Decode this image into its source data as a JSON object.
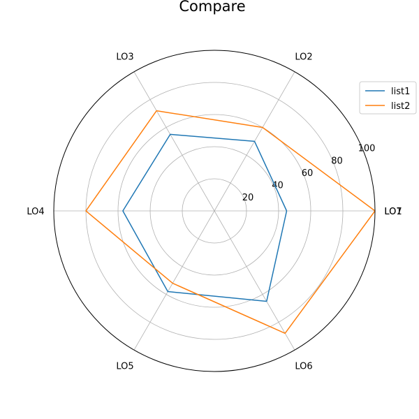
{
  "chart_data": {
    "type": "radar",
    "title": "Compare",
    "categories": [
      "LO1",
      "LO2",
      "LO3",
      "LO4",
      "LO5",
      "LO6",
      "LO7"
    ],
    "series": [
      {
        "name": "list1",
        "color": "#1f77b4",
        "values": [
          45,
          50,
          55,
          57,
          58,
          65,
          45
        ]
      },
      {
        "name": "list2",
        "color": "#ff7f0e",
        "values": [
          100,
          60,
          72,
          80,
          52,
          88,
          100
        ]
      }
    ],
    "rlim": [
      0,
      100
    ],
    "rticks": [
      20,
      40,
      60,
      80,
      100
    ],
    "grid": true,
    "legend": "top-right"
  }
}
